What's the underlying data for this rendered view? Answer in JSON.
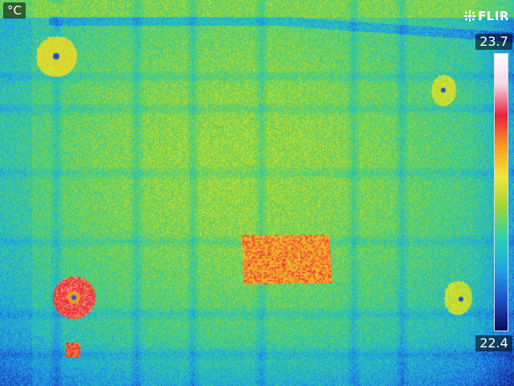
{
  "unit_label": "°C",
  "brand": {
    "name": "FLIR",
    "icon": "flir-logo-icon"
  },
  "scale": {
    "max": "23.7",
    "min": "22.4",
    "palette": [
      "#0a0a5a",
      "#1f50c8",
      "#1fa6e6",
      "#2bd1b0",
      "#9ad63a",
      "#f2e63a",
      "#f79a23",
      "#e8203a",
      "#f5d6e8",
      "#ffffff"
    ]
  },
  "colors": {
    "cold": "#1e5ad0",
    "mid": "#4fbf5a",
    "warm": "#d8e032",
    "hot": "#f59a2a",
    "hottest": "#e8203a"
  }
}
